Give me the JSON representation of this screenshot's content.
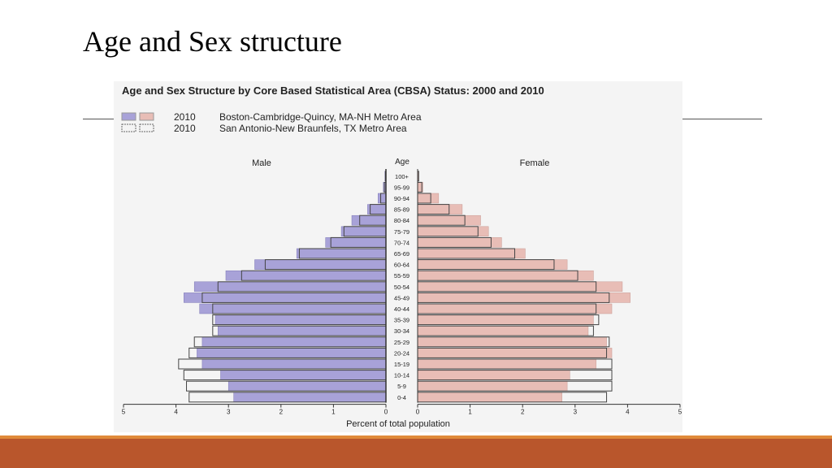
{
  "slide": {
    "title": "Age and Sex structure"
  },
  "colors": {
    "male_fill": "#a8a2d8",
    "female_fill": "#e8bdb6",
    "outline": "#444444",
    "bottom_bar": "#b9562c",
    "bottom_bar_accent": "#e08a3a"
  },
  "chart_data": {
    "type": "bar",
    "orientation": "horizontal",
    "title": "Age and Sex Structure by Core Based Statistical Area (CBSA) Status: 2000 and 2010",
    "legend": [
      {
        "year": "2010",
        "label": "Boston-Cambridge-Quincy, MA-NH Metro Area",
        "style": "filled"
      },
      {
        "year": "2010",
        "label": "San Antonio-New Braunfels, TX Metro Area",
        "style": "outline"
      }
    ],
    "male_label": "Male",
    "female_label": "Female",
    "age_label": "Age",
    "xlabel": "Percent of total population",
    "xticks": [
      "5",
      "4",
      "3",
      "2",
      "1",
      "0",
      "0",
      "1",
      "2",
      "3",
      "4",
      "5"
    ],
    "xlim": [
      0,
      5
    ],
    "categories": [
      "100+",
      "95-99",
      "90-94",
      "85-89",
      "80-84",
      "75-79",
      "70-74",
      "65-69",
      "60-64",
      "55-59",
      "50-54",
      "45-49",
      "40-44",
      "35-39",
      "30-34",
      "25-29",
      "20-24",
      "15-19",
      "10-14",
      "5-9",
      "0-4"
    ],
    "series": [
      {
        "name": "Boston-Cambridge-Quincy, MA-NH Metro Area",
        "sex": "male",
        "values": [
          0.02,
          0.05,
          0.15,
          0.35,
          0.65,
          0.85,
          1.15,
          1.7,
          2.5,
          3.05,
          3.65,
          3.85,
          3.55,
          3.25,
          3.2,
          3.5,
          3.6,
          3.5,
          3.15,
          3.0,
          2.9
        ]
      },
      {
        "name": "Boston-Cambridge-Quincy, MA-NH Metro Area",
        "sex": "female",
        "values": [
          0.02,
          0.1,
          0.4,
          0.85,
          1.2,
          1.35,
          1.6,
          2.05,
          2.85,
          3.35,
          3.9,
          4.05,
          3.7,
          3.35,
          3.25,
          3.6,
          3.7,
          3.4,
          2.9,
          2.85,
          2.75
        ]
      },
      {
        "name": "San Antonio-New Braunfels, TX Metro Area",
        "sex": "male",
        "values": [
          0.01,
          0.03,
          0.1,
          0.3,
          0.5,
          0.8,
          1.05,
          1.65,
          2.3,
          2.75,
          3.2,
          3.5,
          3.3,
          3.3,
          3.3,
          3.65,
          3.75,
          3.95,
          3.85,
          3.8,
          3.75
        ]
      },
      {
        "name": "San Antonio-New Braunfels, TX Metro Area",
        "sex": "female",
        "values": [
          0.02,
          0.08,
          0.25,
          0.6,
          0.9,
          1.15,
          1.4,
          1.85,
          2.6,
          3.05,
          3.4,
          3.65,
          3.4,
          3.45,
          3.35,
          3.65,
          3.6,
          3.7,
          3.7,
          3.7,
          3.6
        ]
      }
    ]
  }
}
